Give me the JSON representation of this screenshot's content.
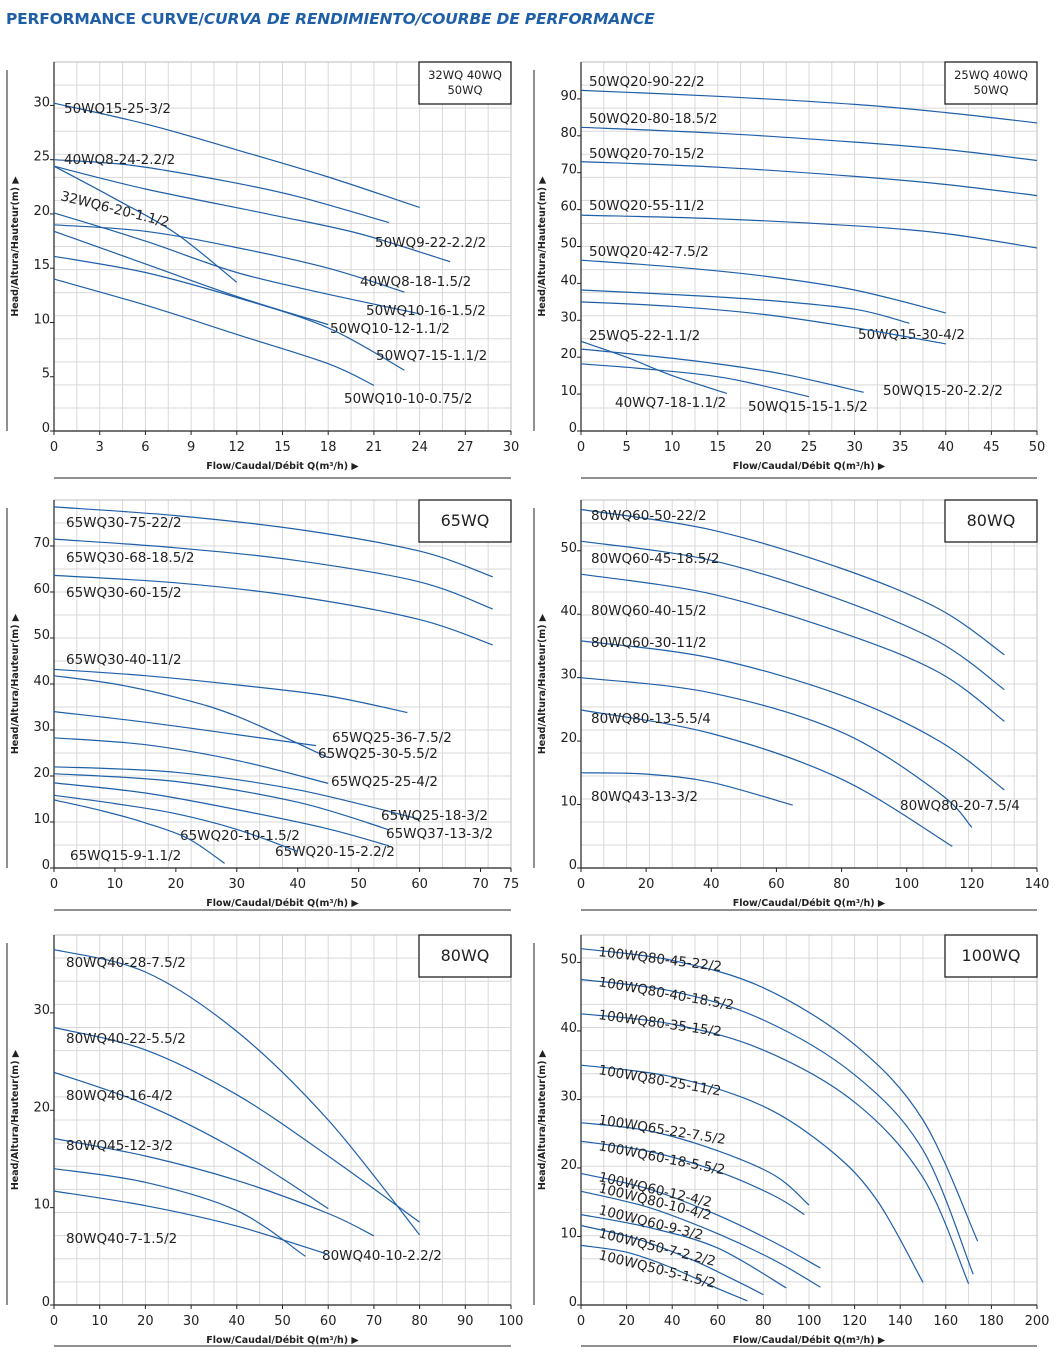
{
  "page_title_main": "PERFORMANCE CURVE/",
  "page_title_italic": "CURVA DE RENDIMIENTO/COURBE DE PERFORMANCE",
  "colors": {
    "curve": "#1f5fa8",
    "title": "#1f5fa8",
    "grid": "#d9d9d9"
  },
  "chart_data": [
    {
      "type": "line",
      "legend_box": [
        "32WQ 40WQ",
        "50WQ"
      ],
      "xlabel": "Flow/Caudal/Débit Q(m³/h)",
      "ylabel": "Head/Altura/Hauteur(m)",
      "xlim": [
        0,
        30
      ],
      "ylim": [
        0,
        34
      ],
      "xticks": [
        "0",
        "3",
        "6",
        "9",
        "12",
        "15",
        "18",
        "21",
        "24",
        "27",
        "30"
      ],
      "yticks": [
        "0",
        "5",
        "10",
        "15",
        "20",
        "25",
        "30"
      ],
      "series": [
        {
          "name": "50WQ15-25-3/2",
          "x": [
            0,
            6,
            12,
            18,
            24
          ],
          "y": [
            30.2,
            28.3,
            25.9,
            23.4,
            20.6
          ]
        },
        {
          "name": "40WQ8-24-2.2/2",
          "x": [
            0,
            5,
            11,
            16,
            22
          ],
          "y": [
            25.0,
            24.5,
            23.1,
            21.6,
            19.2
          ]
        },
        {
          "name": "32WQ6-20-1.1/2",
          "x": [
            0,
            4,
            8,
            12
          ],
          "y": [
            24.4,
            21.4,
            18.2,
            13.7
          ]
        },
        {
          "name": "50WQ9-22-2.2/2",
          "x": [
            0,
            6,
            14,
            20,
            26
          ],
          "y": [
            24.4,
            22.3,
            20.0,
            18.2,
            15.6
          ]
        },
        {
          "name": "40WQ8-18-1.5/2",
          "x": [
            0,
            6,
            12,
            18,
            23
          ],
          "y": [
            19.0,
            18.4,
            16.9,
            15.0,
            12.8
          ]
        },
        {
          "name": "50WQ10-16-1.5/2",
          "x": [
            0,
            6,
            12,
            18,
            24
          ],
          "y": [
            20.1,
            17.5,
            14.6,
            12.6,
            10.8
          ]
        },
        {
          "name": "50WQ10-12-1.1/2",
          "x": [
            0,
            6,
            12,
            18
          ],
          "y": [
            18.4,
            15.4,
            12.4,
            9.8
          ]
        },
        {
          "name": "50WQ7-15-1.1/2",
          "x": [
            0,
            6,
            12,
            18,
            23
          ],
          "y": [
            16.1,
            14.6,
            12.3,
            9.5,
            5.6
          ]
        },
        {
          "name": "50WQ10-10-0.75/2",
          "x": [
            0,
            6,
            12,
            18,
            21
          ],
          "y": [
            14.0,
            11.6,
            8.9,
            6.2,
            4.2
          ]
        }
      ]
    },
    {
      "type": "line",
      "legend_box": [
        "25WQ 40WQ",
        "50WQ"
      ],
      "xlabel": "Flow/Caudal/Débit Q(m³/h)",
      "ylabel": "Head/Altura/Hauteur(m)",
      "xlim": [
        0,
        50
      ],
      "ylim": [
        0,
        100
      ],
      "xticks": [
        "0",
        "5",
        "10",
        "15",
        "20",
        "25",
        "30",
        "35",
        "40",
        "45",
        "50"
      ],
      "yticks": [
        "0",
        "10",
        "20",
        "30",
        "40",
        "50",
        "60",
        "70",
        "80",
        "90"
      ],
      "series": [
        {
          "name": "50WQ20-90-22/2",
          "x": [
            0,
            15,
            30,
            40,
            50
          ],
          "y": [
            92.3,
            90.7,
            88.5,
            86.3,
            83.5
          ]
        },
        {
          "name": "50WQ20-80-18.5/2",
          "x": [
            0,
            15,
            30,
            40,
            50
          ],
          "y": [
            82.3,
            80.7,
            78.3,
            76.3,
            73.3
          ]
        },
        {
          "name": "50WQ20-70-15/2",
          "x": [
            0,
            15,
            30,
            40,
            50
          ],
          "y": [
            73.0,
            71.5,
            69.0,
            66.8,
            63.8
          ]
        },
        {
          "name": "50WQ20-55-11/2",
          "x": [
            0,
            15,
            30,
            40,
            50
          ],
          "y": [
            58.5,
            57.5,
            55.6,
            53.5,
            49.6
          ]
        },
        {
          "name": "50WQ20-42-7.5/2",
          "x": [
            0,
            10,
            20,
            30,
            40
          ],
          "y": [
            46.3,
            44.5,
            42.0,
            38.2,
            32.0
          ]
        },
        {
          "name": "50WQ15-30-4/2",
          "x": [
            0,
            10,
            20,
            30,
            36
          ],
          "y": [
            38.2,
            37.0,
            35.5,
            33.0,
            29.2
          ]
        },
        {
          "name": "25WQ5-22-1.1/2",
          "x": [
            0,
            5,
            10,
            16
          ],
          "y": [
            24.3,
            20.0,
            15.0,
            10.2
          ]
        },
        {
          "name": "50WQ15-20-2.2/2",
          "x": [
            0,
            10,
            20,
            30,
            40
          ],
          "y": [
            35.0,
            33.8,
            31.6,
            28.0,
            23.6
          ]
        },
        {
          "name": "40WQ7-18-1.1/2",
          "x": [
            0,
            7,
            14,
            22,
            31
          ],
          "y": [
            22.2,
            20.5,
            18.5,
            15.5,
            10.5
          ]
        },
        {
          "name": "50WQ15-15-1.5/2",
          "x": [
            0,
            8,
            16,
            25
          ],
          "y": [
            18.2,
            16.6,
            14.3,
            9.3
          ]
        }
      ]
    },
    {
      "type": "line",
      "legend_box": [
        "65WQ"
      ],
      "xlabel": "Flow/Caudal/Débit Q(m³/h)",
      "ylabel": "Head/Altura/Hauteur(m)",
      "xlim": [
        0,
        75
      ],
      "ylim": [
        0,
        80
      ],
      "xticks": [
        "0",
        "10",
        "20",
        "30",
        "40",
        "50",
        "60",
        "70",
        "75"
      ],
      "yticks": [
        "0",
        "10",
        "20",
        "30",
        "40",
        "50",
        "60",
        "70"
      ],
      "series": [
        {
          "name": "65WQ30-75-22/2",
          "x": [
            0,
            20,
            40,
            60,
            72
          ],
          "y": [
            78.5,
            76.6,
            73.6,
            68.9,
            63.3
          ]
        },
        {
          "name": "65WQ30-68-18.5/2",
          "x": [
            0,
            20,
            40,
            60,
            72
          ],
          "y": [
            71.5,
            69.6,
            66.8,
            62.2,
            56.3
          ]
        },
        {
          "name": "65WQ30-60-15/2",
          "x": [
            0,
            20,
            40,
            60,
            72
          ],
          "y": [
            63.6,
            62.0,
            59.0,
            54.0,
            48.5
          ]
        },
        {
          "name": "65WQ30-40-11/2",
          "x": [
            0,
            15,
            30,
            45,
            58
          ],
          "y": [
            43.2,
            41.8,
            39.8,
            37.4,
            33.8
          ]
        },
        {
          "name": "65WQ25-36-7.5/2",
          "x": [
            0,
            10,
            20,
            30,
            45
          ],
          "y": [
            41.8,
            40.0,
            37.1,
            33.0,
            24.0
          ]
        },
        {
          "name": "65WQ25-30-5.5/2",
          "x": [
            0,
            15,
            30,
            43
          ],
          "y": [
            34.0,
            31.7,
            29.0,
            26.6
          ]
        },
        {
          "name": "65WQ25-25-4/2",
          "x": [
            0,
            15,
            30,
            45
          ],
          "y": [
            28.3,
            26.8,
            23.4,
            18.4
          ]
        },
        {
          "name": "65WQ25-18-3/2",
          "x": [
            0,
            20,
            40,
            60
          ],
          "y": [
            22.0,
            20.8,
            17.0,
            10.6
          ]
        },
        {
          "name": "65WQ37-13-3/2",
          "x": [
            0,
            20,
            40,
            55
          ],
          "y": [
            20.5,
            18.8,
            14.3,
            8.3
          ]
        },
        {
          "name": "65WQ20-15-2.2/2",
          "x": [
            0,
            15,
            30,
            45,
            55
          ],
          "y": [
            18.5,
            16.3,
            12.7,
            8.5,
            4.8
          ]
        },
        {
          "name": "65WQ20-10-1.5/2",
          "x": [
            0,
            10,
            20,
            30,
            40
          ],
          "y": [
            15.8,
            14.0,
            11.8,
            8.4,
            3.6
          ]
        },
        {
          "name": "65WQ15-9-1.1/2",
          "x": [
            0,
            8,
            15,
            22,
            28
          ],
          "y": [
            14.8,
            12.4,
            9.8,
            6.4,
            1.0
          ]
        }
      ]
    },
    {
      "type": "line",
      "legend_box": [
        "80WQ"
      ],
      "xlabel": "Flow/Caudal/Débit Q(m³/h)",
      "ylabel": "Head/Altura/Hauteur(m)",
      "xlim": [
        0,
        140
      ],
      "ylim": [
        0,
        58
      ],
      "xticks": [
        "0",
        "20",
        "40",
        "60",
        "80",
        "100",
        "120",
        "140"
      ],
      "yticks": [
        "0",
        "10",
        "20",
        "30",
        "40",
        "50"
      ],
      "series": [
        {
          "name": "80WQ60-50-22/2",
          "x": [
            0,
            40,
            80,
            110,
            130
          ],
          "y": [
            56.5,
            53.3,
            47.2,
            40.8,
            33.6
          ]
        },
        {
          "name": "80WQ60-45-18.5/2",
          "x": [
            0,
            40,
            80,
            110,
            130
          ],
          "y": [
            51.5,
            48.5,
            42.2,
            35.6,
            28.1
          ]
        },
        {
          "name": "80WQ60-40-15/2",
          "x": [
            0,
            40,
            80,
            110,
            130
          ],
          "y": [
            46.3,
            43.2,
            37.1,
            30.8,
            23.1
          ]
        },
        {
          "name": "80WQ60-30-11/2",
          "x": [
            0,
            40,
            80,
            110,
            130
          ],
          "y": [
            35.8,
            33.1,
            27.2,
            20.0,
            12.3
          ]
        },
        {
          "name": "80WQ80-20-7.5/4",
          "x": [
            0,
            40,
            80,
            110,
            120
          ],
          "y": [
            30.0,
            27.6,
            21.4,
            11.8,
            6.4
          ]
        },
        {
          "name": "80WQ80-13-5.5/4",
          "x": [
            0,
            40,
            80,
            114
          ],
          "y": [
            24.9,
            21.2,
            14.0,
            3.4
          ]
        },
        {
          "name": "80WQ43-13-3/2",
          "x": [
            0,
            20,
            40,
            65
          ],
          "y": [
            15.0,
            14.8,
            13.5,
            9.9
          ]
        }
      ]
    },
    {
      "type": "line",
      "legend_box": [
        "80WQ"
      ],
      "xlabel": "Flow/Caudal/Débit Q(m³/h)",
      "ylabel": "Head/Altura/Hauteur(m)",
      "xlim": [
        0,
        100
      ],
      "ylim": [
        0,
        38
      ],
      "xticks": [
        "0",
        "10",
        "20",
        "30",
        "40",
        "50",
        "60",
        "70",
        "80",
        "90",
        "100"
      ],
      "yticks": [
        "0",
        "10",
        "20",
        "30"
      ],
      "series": [
        {
          "name": "80WQ40-28-7.5/2",
          "x": [
            0,
            20,
            40,
            60,
            80
          ],
          "y": [
            36.5,
            34.2,
            28.1,
            19.0,
            7.2
          ]
        },
        {
          "name": "80WQ40-22-5.5/2",
          "x": [
            0,
            20,
            40,
            60,
            80
          ],
          "y": [
            28.5,
            26.2,
            21.6,
            15.3,
            8.5
          ]
        },
        {
          "name": "80WQ40-16-4/2",
          "x": [
            0,
            20,
            40,
            60
          ],
          "y": [
            23.9,
            20.6,
            15.9,
            9.9
          ]
        },
        {
          "name": "80WQ45-12-3/2",
          "x": [
            0,
            20,
            40,
            60,
            70
          ],
          "y": [
            17.1,
            15.3,
            12.8,
            9.4,
            7.1
          ]
        },
        {
          "name": "80WQ40-10-2.2/2",
          "x": [
            0,
            20,
            40,
            55
          ],
          "y": [
            14.0,
            12.6,
            9.7,
            5.0
          ]
        },
        {
          "name": "80WQ40-7-1.5/2",
          "x": [
            0,
            20,
            40,
            60
          ],
          "y": [
            11.7,
            10.2,
            8.1,
            5.2
          ]
        }
      ]
    },
    {
      "type": "line",
      "legend_box": [
        "100WQ"
      ],
      "xlabel": "Flow/Caudal/Débit Q(m³/h)",
      "ylabel": "Head/Altura/Hauteur(m)",
      "xlim": [
        0,
        200
      ],
      "ylim": [
        0,
        54
      ],
      "xticks": [
        "0",
        "20",
        "40",
        "60",
        "80",
        "100",
        "120",
        "140",
        "160",
        "180",
        "200"
      ],
      "yticks": [
        "0",
        "10",
        "20",
        "30",
        "40",
        "50"
      ],
      "series": [
        {
          "name": "100WQ80-45-22/2",
          "x": [
            0,
            40,
            80,
            120,
            150,
            174
          ],
          "y": [
            52.0,
            50.3,
            46.3,
            38.0,
            27.0,
            9.3
          ]
        },
        {
          "name": "100WQ80-40-18.5/2",
          "x": [
            0,
            40,
            80,
            120,
            150,
            172
          ],
          "y": [
            47.5,
            45.8,
            41.6,
            33.6,
            22.6,
            4.5
          ]
        },
        {
          "name": "100WQ80-35-15/2",
          "x": [
            0,
            40,
            80,
            120,
            150,
            170
          ],
          "y": [
            42.5,
            41.0,
            37.2,
            29.6,
            18.6,
            3.1
          ]
        },
        {
          "name": "100WQ80-25-11/2",
          "x": [
            0,
            40,
            80,
            110,
            130,
            150
          ],
          "y": [
            35.0,
            33.3,
            29.0,
            22.4,
            15.2,
            3.3
          ]
        },
        {
          "name": "100WQ65-22-7.5/2",
          "x": [
            0,
            30,
            60,
            85,
            100
          ],
          "y": [
            26.6,
            25.4,
            22.5,
            18.9,
            14.6
          ]
        },
        {
          "name": "100WQ60-18-5.5/2",
          "x": [
            0,
            30,
            60,
            85,
            98
          ],
          "y": [
            23.9,
            22.4,
            19.5,
            15.9,
            13.2
          ]
        },
        {
          "name": "100WQ60-12-4/2",
          "x": [
            0,
            30,
            60,
            85,
            105
          ],
          "y": [
            19.2,
            16.9,
            13.1,
            9.1,
            5.4
          ]
        },
        {
          "name": "100WQ80-10-4/2",
          "x": [
            0,
            30,
            60,
            85,
            105
          ],
          "y": [
            16.6,
            14.2,
            10.4,
            6.5,
            2.6
          ]
        },
        {
          "name": "100WQ60-9-3/2",
          "x": [
            0,
            30,
            60,
            90
          ],
          "y": [
            13.2,
            11.3,
            8.3,
            2.5
          ]
        },
        {
          "name": "100WQ50-7-2.2/2",
          "x": [
            0,
            25,
            50,
            70,
            80
          ],
          "y": [
            11.6,
            9.6,
            6.4,
            3.2,
            1.5
          ]
        },
        {
          "name": "100WQ50-5-1.5/2",
          "x": [
            0,
            20,
            40,
            60,
            73
          ],
          "y": [
            8.7,
            7.7,
            5.4,
            2.4,
            0.6
          ]
        }
      ]
    }
  ]
}
